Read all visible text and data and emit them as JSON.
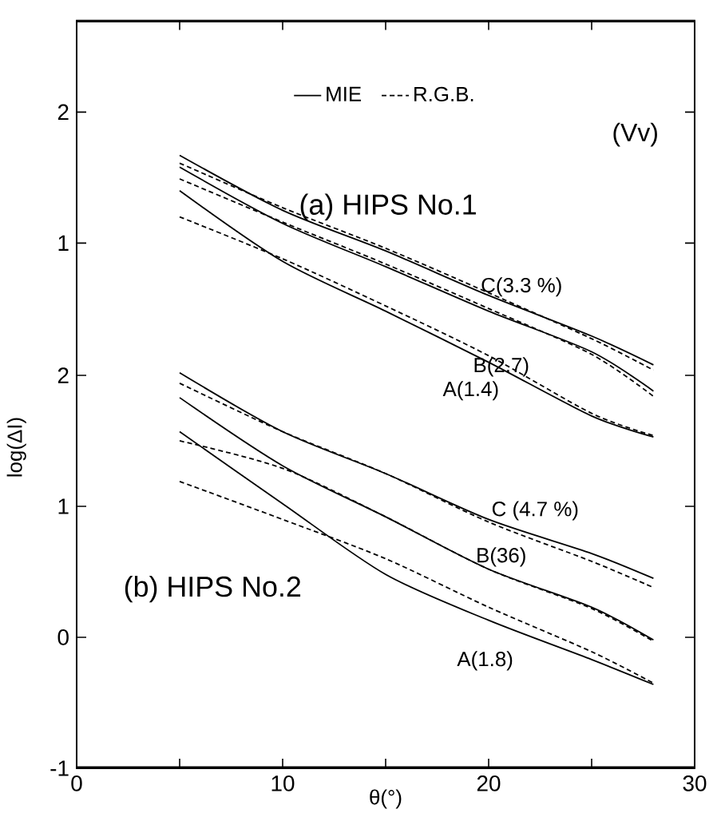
{
  "chart_data": [
    {
      "type": "line",
      "title": "(a) HIPS No.1",
      "x": [
        5,
        10,
        15,
        20,
        25,
        28
      ],
      "xlim": [
        0,
        30
      ],
      "ylim": [
        -3,
        2.7
      ],
      "xticks": [
        {
          "value": 5,
          "label": null
        },
        {
          "value": 10,
          "label": null
        },
        {
          "value": 15,
          "label": null
        },
        {
          "value": 20,
          "label": null
        },
        {
          "value": 25,
          "label": null
        }
      ],
      "yticks": [
        1,
        2
      ],
      "tick_labels": "y",
      "legend": "top",
      "marker": "none",
      "annotations": [
        "(Vv)",
        "C(3.3 %)",
        "B(2.7)",
        "A(1.4)"
      ],
      "series": [
        {
          "name": "MIE",
          "color": "#000000",
          "line_style": "solid",
          "values": [
            1.67,
            1.25,
            0.94,
            0.6,
            0.29,
            0.07
          ]
        },
        {
          "name": "R.G.B.",
          "color": "#000000",
          "line_style": "dashed",
          "values": [
            1.61,
            1.27,
            0.96,
            0.62,
            0.27,
            0.03
          ]
        },
        {
          "color": "#000000",
          "line_style": "solid",
          "values": [
            1.58,
            1.15,
            0.82,
            0.48,
            0.17,
            -0.13
          ]
        },
        {
          "color": "#000000",
          "line_style": "dashed",
          "values": [
            1.49,
            1.16,
            0.84,
            0.5,
            0.15,
            -0.17
          ]
        },
        {
          "color": "#000000",
          "line_style": "solid",
          "values": [
            1.4,
            0.86,
            0.48,
            0.09,
            -0.32,
            -0.48
          ]
        },
        {
          "color": "#000000",
          "line_style": "dashed",
          "values": [
            1.2,
            0.88,
            0.52,
            0.14,
            -0.3,
            -0.47
          ]
        }
      ]
    },
    {
      "type": "line",
      "title": "(b) HIPS No.2",
      "xlabel": "θ(°)",
      "ylabel": "log(ΔI)",
      "x": [
        5,
        10,
        15,
        20,
        25,
        28
      ],
      "xlim": [
        0,
        30
      ],
      "ylim": [
        -1,
        4.7
      ],
      "xticks": [
        0,
        {
          "value": 5,
          "label": null
        },
        10,
        {
          "value": 15,
          "label": null
        },
        20,
        {
          "value": 25,
          "label": null
        },
        30
      ],
      "yticks": [
        -1,
        0,
        1,
        2
      ],
      "marker": "none",
      "annotations": [
        "C (4.7 %)",
        "B(36)",
        "A(1.8)"
      ],
      "series": [
        {
          "color": "#000000",
          "line_style": "solid",
          "values": [
            2.02,
            1.57,
            1.25,
            0.9,
            0.64,
            0.45
          ]
        },
        {
          "color": "#000000",
          "line_style": "dashed",
          "values": [
            1.94,
            1.57,
            1.25,
            0.88,
            0.58,
            0.38
          ]
        },
        {
          "color": "#000000",
          "line_style": "solid",
          "values": [
            1.83,
            1.31,
            0.92,
            0.52,
            0.23,
            -0.02
          ]
        },
        {
          "color": "#000000",
          "line_style": "dashed",
          "values": [
            1.5,
            1.29,
            0.92,
            0.52,
            0.22,
            -0.03
          ]
        },
        {
          "color": "#000000",
          "line_style": "solid",
          "values": [
            1.57,
            1.02,
            0.48,
            0.13,
            -0.17,
            -0.36
          ]
        },
        {
          "color": "#000000",
          "line_style": "dashed",
          "values": [
            1.19,
            0.9,
            0.6,
            0.23,
            -0.11,
            -0.35
          ]
        }
      ]
    }
  ]
}
